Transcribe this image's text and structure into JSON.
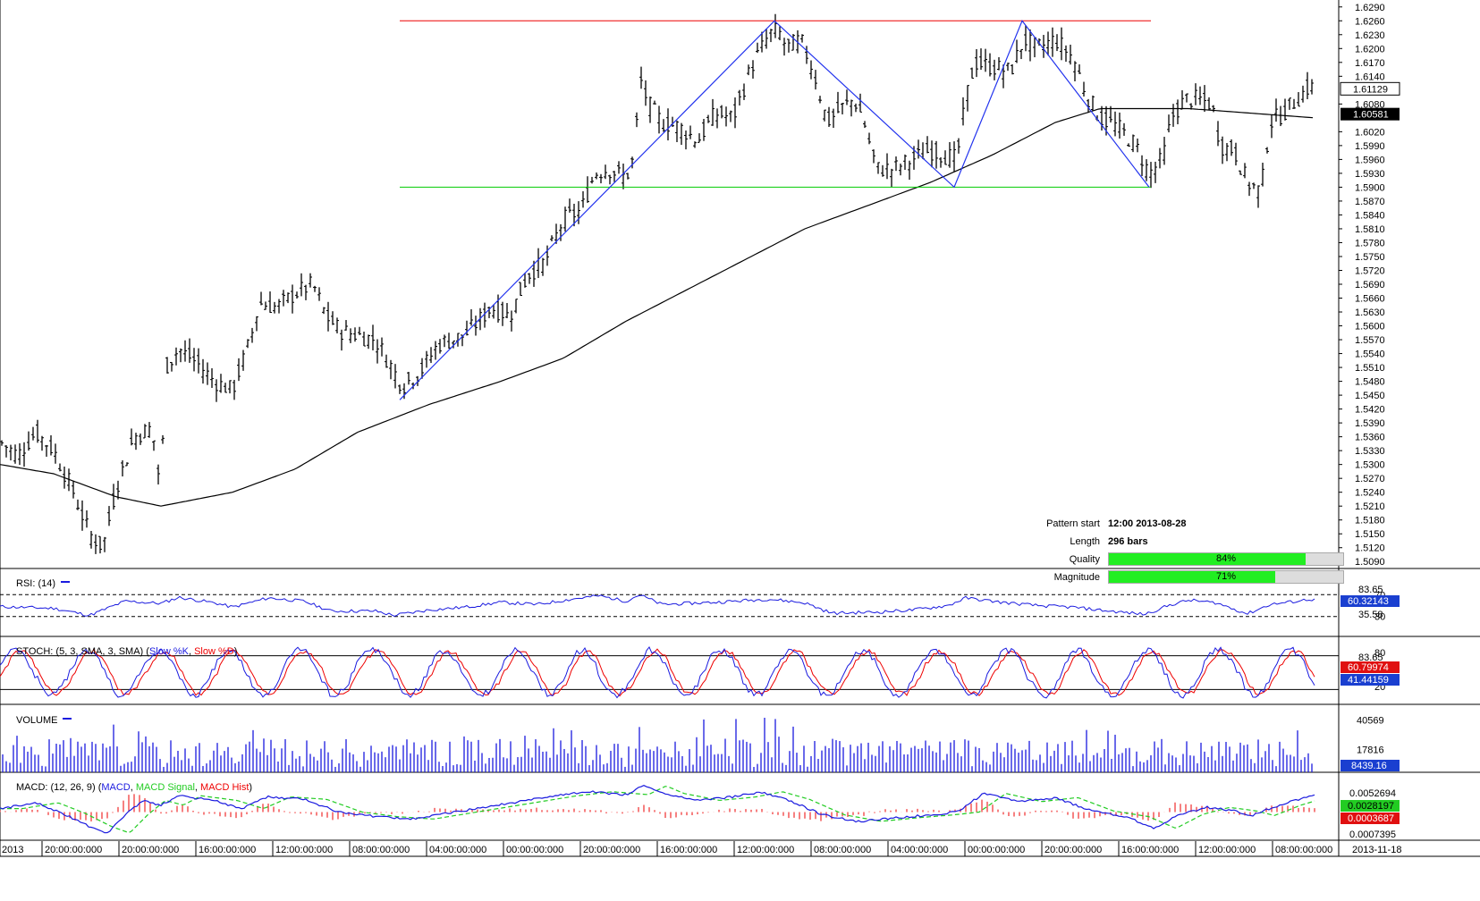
{
  "chart_data": {
    "type": "candlestick",
    "symbol_period": "",
    "price_axis": {
      "ticks": [
        "1.6290",
        "1.6260",
        "1.6230",
        "1.6200",
        "1.6170",
        "1.6140",
        "1.6080",
        "1.6020",
        "1.5990",
        "1.5960",
        "1.5930",
        "1.5900",
        "1.5870",
        "1.5840",
        "1.5810",
        "1.5780",
        "1.5750",
        "1.5720",
        "1.5690",
        "1.5660",
        "1.5630",
        "1.5600",
        "1.5570",
        "1.5540",
        "1.5510",
        "1.5480",
        "1.5450",
        "1.5420",
        "1.5390",
        "1.5360",
        "1.5330",
        "1.5300",
        "1.5270",
        "1.5240",
        "1.5210",
        "1.5180",
        "1.5150",
        "1.5120",
        "1.5090"
      ],
      "ylim": [
        1.5075,
        1.6305
      ],
      "current_price": "1.61129",
      "ma_value": "1.60581"
    },
    "time_axis": {
      "labels": [
        "2013",
        "20:00:00:000",
        "20:00:00:000",
        "16:00:00:000",
        "12:00:00:000",
        "08:00:00:000",
        "04:00:00:000",
        "00:00:00:000",
        "20:00:00:000",
        "16:00:00:000",
        "12:00:00:000",
        "08:00:00:000",
        "04:00:00:000",
        "00:00:00:000",
        "20:00:00:000",
        "16:00:00:000",
        "12:00:00:000",
        "08:00:00:000",
        "2013-11-18"
      ]
    },
    "price_anchors": [
      [
        0,
        1.535
      ],
      [
        20,
        1.532
      ],
      [
        40,
        1.537
      ],
      [
        60,
        1.533
      ],
      [
        80,
        1.525
      ],
      [
        100,
        1.515
      ],
      [
        115,
        1.512
      ],
      [
        130,
        1.525
      ],
      [
        150,
        1.536
      ],
      [
        170,
        1.538
      ],
      [
        180,
        1.524
      ],
      [
        185,
        1.551
      ],
      [
        200,
        1.555
      ],
      [
        220,
        1.552
      ],
      [
        240,
        1.548
      ],
      [
        260,
        1.546
      ],
      [
        280,
        1.557
      ],
      [
        290,
        1.565
      ],
      [
        310,
        1.564
      ],
      [
        330,
        1.567
      ],
      [
        350,
        1.569
      ],
      [
        365,
        1.562
      ],
      [
        380,
        1.559
      ],
      [
        400,
        1.558
      ],
      [
        420,
        1.557
      ],
      [
        435,
        1.552
      ],
      [
        450,
        1.547
      ],
      [
        470,
        1.55
      ],
      [
        490,
        1.556
      ],
      [
        520,
        1.558
      ],
      [
        550,
        1.564
      ],
      [
        570,
        1.562
      ],
      [
        590,
        1.571
      ],
      [
        610,
        1.574
      ],
      [
        630,
        1.583
      ],
      [
        650,
        1.585
      ],
      [
        665,
        1.593
      ],
      [
        680,
        1.594
      ],
      [
        700,
        1.592
      ],
      [
        710,
        1.597
      ],
      [
        715,
        1.614
      ],
      [
        725,
        1.608
      ],
      [
        740,
        1.604
      ],
      [
        760,
        1.603
      ],
      [
        780,
        1.6
      ],
      [
        800,
        1.606
      ],
      [
        820,
        1.605
      ],
      [
        840,
        1.616
      ],
      [
        860,
        1.623
      ],
      [
        870,
        1.624
      ],
      [
        880,
        1.62
      ],
      [
        895,
        1.622
      ],
      [
        910,
        1.615
      ],
      [
        925,
        1.604
      ],
      [
        940,
        1.607
      ],
      [
        955,
        1.609
      ],
      [
        965,
        1.605
      ],
      [
        980,
        1.594
      ],
      [
        1000,
        1.594
      ],
      [
        1020,
        1.596
      ],
      [
        1040,
        1.598
      ],
      [
        1055,
        1.597
      ],
      [
        1070,
        1.596
      ],
      [
        1080,
        1.609
      ],
      [
        1090,
        1.617
      ],
      [
        1110,
        1.616
      ],
      [
        1130,
        1.615
      ],
      [
        1145,
        1.622
      ],
      [
        1160,
        1.62
      ],
      [
        1180,
        1.622
      ],
      [
        1200,
        1.618
      ],
      [
        1215,
        1.61
      ],
      [
        1230,
        1.605
      ],
      [
        1250,
        1.603
      ],
      [
        1270,
        1.599
      ],
      [
        1285,
        1.593
      ],
      [
        1300,
        1.596
      ],
      [
        1310,
        1.605
      ],
      [
        1325,
        1.609
      ],
      [
        1340,
        1.609
      ],
      [
        1355,
        1.608
      ],
      [
        1365,
        1.599
      ],
      [
        1380,
        1.598
      ],
      [
        1395,
        1.591
      ],
      [
        1410,
        1.589
      ],
      [
        1420,
        1.604
      ],
      [
        1435,
        1.606
      ],
      [
        1450,
        1.609
      ],
      [
        1465,
        1.612
      ],
      [
        1470,
        1.611
      ]
    ],
    "ma_anchors": [
      [
        0,
        1.53
      ],
      [
        60,
        1.528
      ],
      [
        130,
        1.523
      ],
      [
        180,
        1.521
      ],
      [
        260,
        1.524
      ],
      [
        330,
        1.529
      ],
      [
        400,
        1.537
      ],
      [
        480,
        1.543
      ],
      [
        560,
        1.548
      ],
      [
        630,
        1.553
      ],
      [
        700,
        1.561
      ],
      [
        760,
        1.567
      ],
      [
        830,
        1.574
      ],
      [
        900,
        1.581
      ],
      [
        970,
        1.586
      ],
      [
        1040,
        1.591
      ],
      [
        1110,
        1.597
      ],
      [
        1180,
        1.604
      ],
      [
        1230,
        1.607
      ],
      [
        1270,
        1.607
      ],
      [
        1330,
        1.607
      ],
      [
        1400,
        1.606
      ],
      [
        1470,
        1.605
      ]
    ],
    "pattern": {
      "resistance": 1.626,
      "support": 1.59,
      "resistance_x": [
        447,
        1287
      ],
      "support_x": [
        447,
        1287
      ],
      "zigzag": [
        [
          447,
          1.544
        ],
        [
          866,
          1.626
        ],
        [
          1067,
          1.59
        ],
        [
          1143,
          1.626
        ],
        [
          1285,
          1.59
        ]
      ]
    },
    "pattern_info": {
      "start_label": "Pattern start",
      "start_value": "12:00 2013-08-28",
      "length_label": "Length",
      "length_value": "296 bars",
      "quality_label": "Quality",
      "quality": 84,
      "quality_text": "84%",
      "magnitude_label": "Magnitude",
      "magnitude": 71,
      "magnitude_text": "71%"
    },
    "rsi": {
      "title": "RSI: (14)",
      "levels": [
        70,
        30
      ],
      "level_labels": [
        "70",
        "30"
      ],
      "scale_labels": [
        "83.65",
        "35.58"
      ],
      "current": "60.32143",
      "anchors": [
        [
          0,
          48
        ],
        [
          60,
          45
        ],
        [
          100,
          32
        ],
        [
          140,
          58
        ],
        [
          180,
          54
        ],
        [
          200,
          65
        ],
        [
          240,
          55
        ],
        [
          260,
          47
        ],
        [
          300,
          64
        ],
        [
          340,
          58
        ],
        [
          370,
          40
        ],
        [
          420,
          40
        ],
        [
          440,
          32
        ],
        [
          480,
          42
        ],
        [
          520,
          47
        ],
        [
          560,
          56
        ],
        [
          600,
          52
        ],
        [
          640,
          62
        ],
        [
          670,
          68
        ],
        [
          700,
          58
        ],
        [
          715,
          70
        ],
        [
          740,
          52
        ],
        [
          800,
          56
        ],
        [
          860,
          62
        ],
        [
          900,
          55
        ],
        [
          930,
          36
        ],
        [
          980,
          38
        ],
        [
          1020,
          42
        ],
        [
          1060,
          50
        ],
        [
          1080,
          64
        ],
        [
          1120,
          56
        ],
        [
          1160,
          50
        ],
        [
          1200,
          47
        ],
        [
          1240,
          40
        ],
        [
          1280,
          34
        ],
        [
          1310,
          52
        ],
        [
          1330,
          60
        ],
        [
          1360,
          55
        ],
        [
          1395,
          35
        ],
        [
          1420,
          52
        ],
        [
          1450,
          58
        ],
        [
          1465,
          62
        ],
        [
          1470,
          60
        ]
      ]
    },
    "stoch": {
      "title": "STOCH: (5, 3, SMA, 3, SMA)",
      "series_k": "Slow %K",
      "series_d": "Slow %D",
      "levels": [
        80,
        20
      ],
      "level_labels": [
        "80",
        "20"
      ],
      "scale_label": "83.65",
      "k_current": "60.79974",
      "d_current": "41.44159"
    },
    "volume": {
      "title": "VOLUME",
      "scale_labels": [
        "40569",
        "17816"
      ],
      "current": "8439.16",
      "ymax": 45000
    },
    "macd": {
      "title": "MACD: (12, 26, 9)",
      "series_macd": "MACD",
      "series_signal": "MACD Signal",
      "series_hist": "MACD Hist",
      "scale_label": "0.0052694",
      "bottom_label": "0.0007395",
      "signal_current": "0.0028197",
      "hist_current": "0.0003687",
      "anchors": [
        [
          0,
          0.6
        ],
        [
          40,
          1.6
        ],
        [
          70,
          -0.2
        ],
        [
          100,
          -2.5
        ],
        [
          120,
          -3.6
        ],
        [
          140,
          -0.5
        ],
        [
          160,
          2.0
        ],
        [
          180,
          1.2
        ],
        [
          200,
          2.8
        ],
        [
          240,
          2.0
        ],
        [
          270,
          0.6
        ],
        [
          300,
          2.6
        ],
        [
          340,
          2.2
        ],
        [
          380,
          0.0
        ],
        [
          420,
          -0.8
        ],
        [
          460,
          -1.2
        ],
        [
          500,
          -0.2
        ],
        [
          540,
          0.8
        ],
        [
          580,
          1.8
        ],
        [
          620,
          2.8
        ],
        [
          660,
          3.5
        ],
        [
          700,
          3.0
        ],
        [
          720,
          4.5
        ],
        [
          740,
          3.2
        ],
        [
          780,
          2.0
        ],
        [
          820,
          2.6
        ],
        [
          850,
          3.5
        ],
        [
          880,
          2.2
        ],
        [
          920,
          -0.5
        ],
        [
          960,
          -1.6
        ],
        [
          1000,
          -1.0
        ],
        [
          1040,
          -0.5
        ],
        [
          1070,
          0.0
        ],
        [
          1100,
          3.2
        ],
        [
          1140,
          1.8
        ],
        [
          1180,
          2.5
        ],
        [
          1220,
          0.2
        ],
        [
          1260,
          -0.8
        ],
        [
          1290,
          -2.8
        ],
        [
          1320,
          -0.4
        ],
        [
          1350,
          0.8
        ],
        [
          1380,
          0.2
        ],
        [
          1400,
          -0.6
        ],
        [
          1430,
          1.2
        ],
        [
          1460,
          2.6
        ],
        [
          1470,
          2.8
        ]
      ]
    }
  }
}
